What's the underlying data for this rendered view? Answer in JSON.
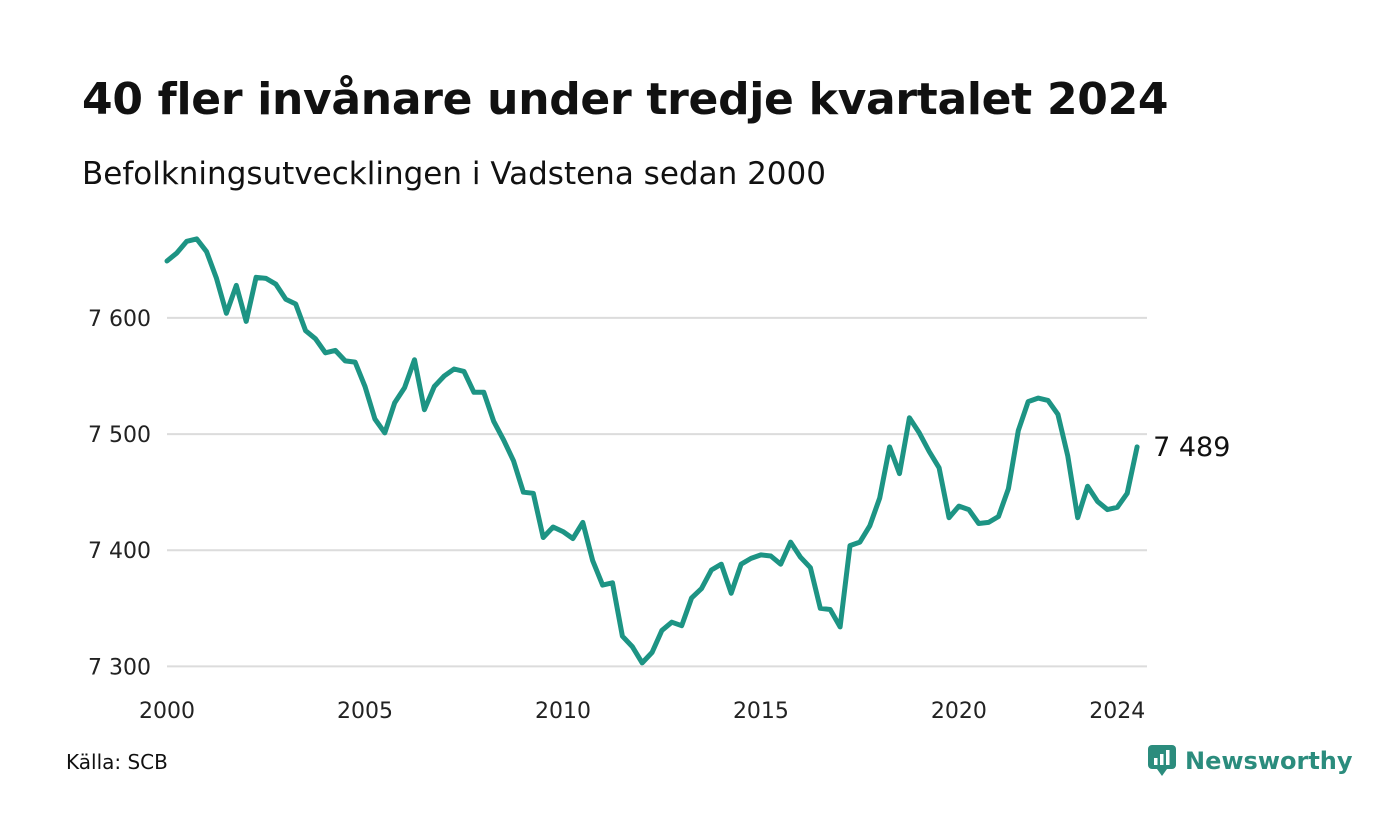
{
  "title": "40 fler invånare under tredje kvartalet 2024",
  "subtitle": "Befolkningsutvecklingen i Vadstena sedan 2000",
  "source": "Källa: SCB",
  "brand": {
    "name": "Newsworthy",
    "icon": "newsworthy-logo-icon",
    "color": "#2b8c7d"
  },
  "chart_data": {
    "type": "line",
    "title": "40 fler invånare under tredje kvartalet 2024",
    "subtitle": "Befolkningsutvecklingen i Vadstena sedan 2000",
    "xlabel": "",
    "ylabel": "",
    "xlim": [
      2000.0,
      2024.75
    ],
    "ylim": [
      7290,
      7680
    ],
    "yticks": [
      7300,
      7400,
      7500,
      7600
    ],
    "ytick_labels": [
      "7 300",
      "7 400",
      "7 500",
      "7 600"
    ],
    "xticks": [
      2000,
      2005,
      2010,
      2015,
      2020,
      2024
    ],
    "xtick_labels": [
      "2000",
      "2005",
      "2010",
      "2015",
      "2020",
      "2024"
    ],
    "grid": true,
    "line_color": "#1d9484",
    "end_label": "7 489",
    "series": [
      {
        "values": [
          7649,
          7656,
          7666,
          7668,
          7657,
          7634,
          7604,
          7628,
          7597,
          7635,
          7634,
          7629,
          7616,
          7612,
          7589,
          7582,
          7570,
          7572,
          7563,
          7562,
          7541,
          7513,
          7501,
          7527,
          7540,
          7564,
          7521,
          7541,
          7550,
          7556,
          7554,
          7536,
          7536,
          7511,
          7495,
          7477,
          7450,
          7449,
          7411,
          7420,
          7416,
          7410,
          7424,
          7391,
          7370,
          7372,
          7326,
          7317,
          7303,
          7312,
          7331,
          7338,
          7335,
          7359,
          7367,
          7383,
          7388,
          7363,
          7388,
          7393,
          7396,
          7395,
          7388,
          7407,
          7394,
          7385,
          7350,
          7349,
          7334,
          7404,
          7407,
          7421,
          7445,
          7489,
          7466,
          7514,
          7501,
          7485,
          7471,
          7428,
          7438,
          7435,
          7423,
          7424,
          7429,
          7453,
          7503,
          7528,
          7531,
          7529,
          7517,
          7481,
          7428,
          7455,
          7442,
          7435,
          7437,
          7449,
          7489
        ]
      }
    ]
  }
}
